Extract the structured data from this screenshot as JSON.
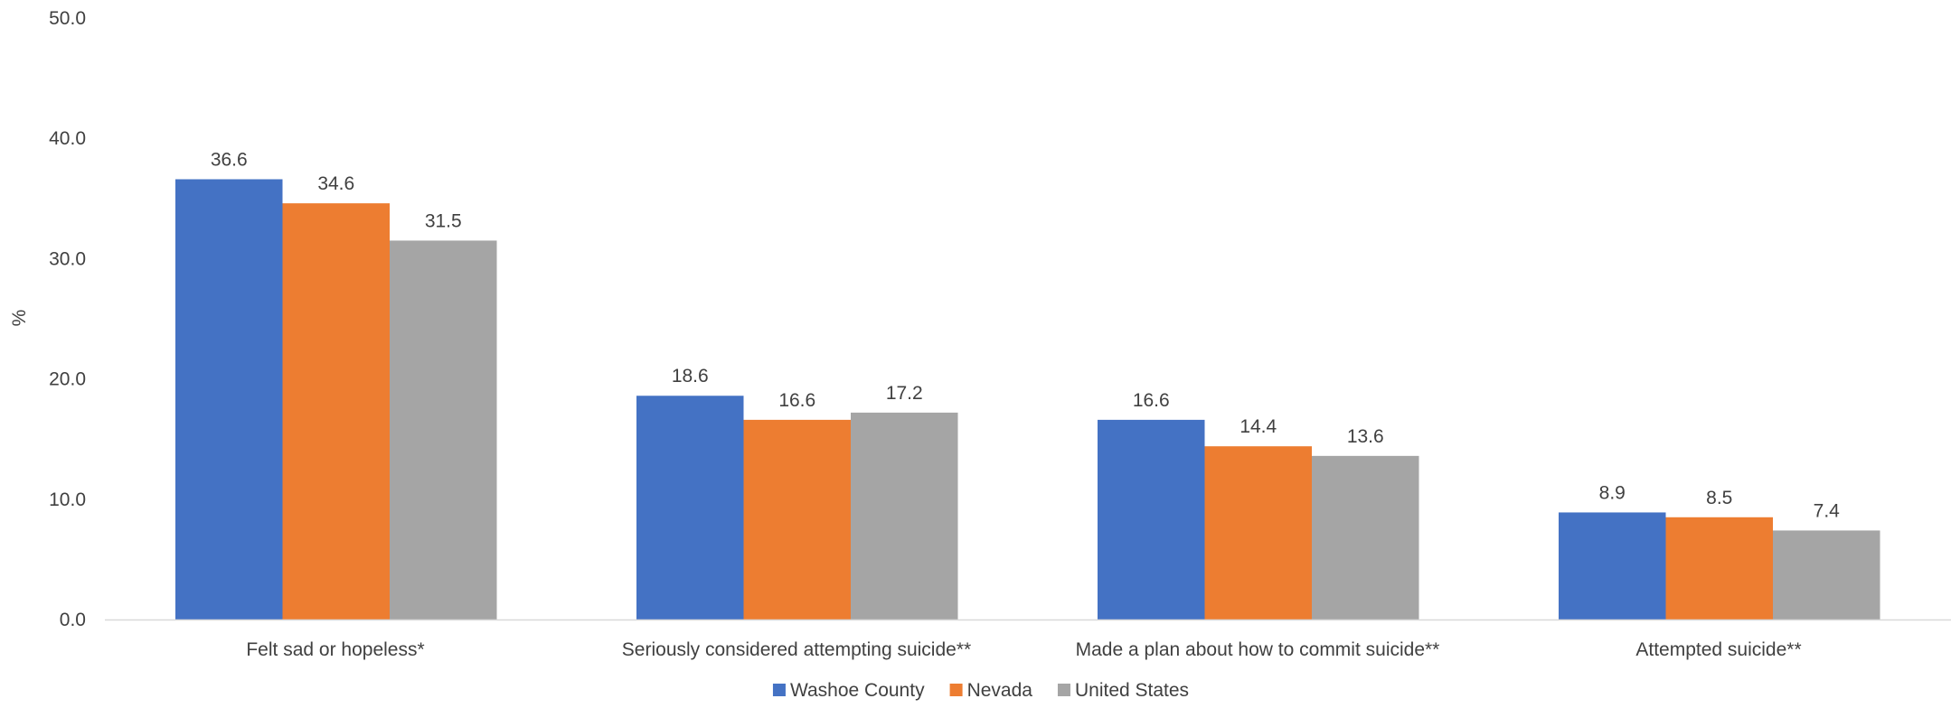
{
  "chart_data": {
    "type": "bar",
    "title": "",
    "xlabel": "",
    "ylabel": "%",
    "ylim": [
      0,
      50
    ],
    "yticks": [
      "0.0",
      "10.0",
      "20.0",
      "30.0",
      "40.0",
      "50.0"
    ],
    "grid": false,
    "legend_position": "bottom",
    "categories": [
      "Felt sad or hopeless*",
      "Seriously considered attempting suicide**",
      "Made a plan about how to commit suicide**",
      "Attempted suicide**"
    ],
    "series": [
      {
        "name": "Washoe County",
        "color": "#4472C4",
        "values": [
          36.6,
          18.6,
          16.6,
          8.9
        ],
        "labels": [
          "36.6",
          "18.6",
          "16.6",
          "8.9"
        ]
      },
      {
        "name": "Nevada",
        "color": "#ED7D31",
        "values": [
          34.6,
          16.6,
          14.4,
          8.5
        ],
        "labels": [
          "34.6",
          "16.6",
          "14.4",
          "8.5"
        ]
      },
      {
        "name": "United States",
        "color": "#A5A5A5",
        "values": [
          31.5,
          17.2,
          13.6,
          7.4
        ],
        "labels": [
          "31.5",
          "17.2",
          "13.6",
          "7.4"
        ]
      }
    ]
  }
}
